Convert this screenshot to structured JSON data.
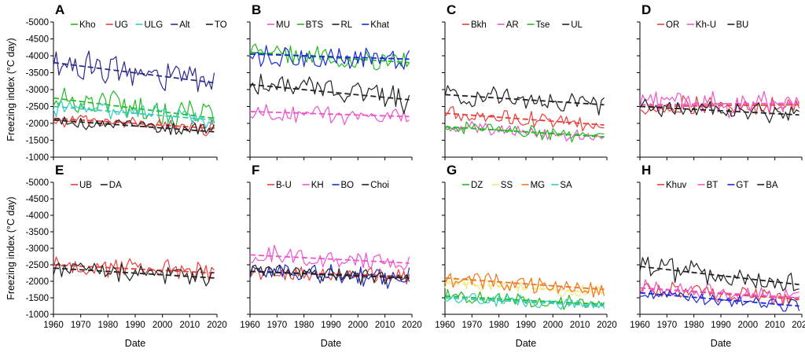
{
  "figure": {
    "ylabel": "Freezing index (°C day)",
    "xlabel": "Date"
  },
  "colors": {
    "red": "#e8403c",
    "green": "#22bb22",
    "cyan": "#33ccbb",
    "black": "#222222",
    "navy": "#2b2a8c",
    "blue": "#1a2ad0",
    "magenta": "#ee55cc",
    "orange": "#ee7722",
    "yellow": "#f5e680"
  },
  "chart_data": [
    {
      "panel": "A",
      "type": "line",
      "x": [
        1960,
        2020
      ],
      "xticks": [
        1960,
        1970,
        1980,
        1990,
        2000,
        2010,
        2020
      ],
      "ylim": [
        -1000,
        -5000
      ],
      "yticks": [
        -5000,
        -4500,
        -4000,
        -3500,
        -3000,
        -2500,
        -2000,
        -1500,
        -1000
      ],
      "ytick_labels": [
        "-5000",
        "-4500",
        "-4000",
        "-3500",
        "-3000",
        "-2500",
        "-2000",
        "-1500",
        "-1000"
      ],
      "xlabel": "",
      "show_ylabel": true,
      "show_xticklabels": false,
      "series": [
        {
          "name": "Kho",
          "color": "green",
          "mean_start": -2750,
          "mean_end": -2150,
          "amplitude": 380
        },
        {
          "name": "UG",
          "color": "red",
          "mean_start": -2150,
          "mean_end": -1850,
          "amplitude": 200
        },
        {
          "name": "ULG",
          "color": "cyan",
          "mean_start": -2500,
          "mean_end": -2100,
          "amplitude": 230
        },
        {
          "name": "Alt",
          "color": "navy",
          "mean_start": -3800,
          "mean_end": -3200,
          "amplitude": 380
        },
        {
          "name": "TO",
          "color": "black",
          "mean_start": -2100,
          "mean_end": -1750,
          "amplitude": 180
        }
      ]
    },
    {
      "panel": "B",
      "type": "line",
      "x": [
        1960,
        2020
      ],
      "xticks": [
        1960,
        1970,
        1980,
        1990,
        2000,
        2010,
        2020
      ],
      "ylim": [
        -1000,
        -5000
      ],
      "yticks": [
        -5000,
        -4500,
        -4000,
        -3500,
        -3000,
        -2500,
        -2000,
        -1500,
        -1000
      ],
      "ytick_labels": [
        "",
        "",
        "",
        "",
        "",
        "",
        "",
        "",
        ""
      ],
      "xlabel": "",
      "show_ylabel": false,
      "show_xticklabels": false,
      "series": [
        {
          "name": "MU",
          "color": "magenta",
          "mean_start": -2350,
          "mean_end": -2200,
          "amplitude": 260
        },
        {
          "name": "BTS",
          "color": "green",
          "mean_start": -4100,
          "mean_end": -3800,
          "amplitude": 260
        },
        {
          "name": "RL",
          "color": "black",
          "mean_start": -3150,
          "mean_end": -2700,
          "amplitude": 330
        },
        {
          "name": "Khat",
          "color": "blue",
          "mean_start": -4050,
          "mean_end": -3900,
          "amplitude": 330
        }
      ]
    },
    {
      "panel": "C",
      "type": "line",
      "x": [
        1960,
        2020
      ],
      "xticks": [
        1960,
        1970,
        1980,
        1990,
        2000,
        2010,
        2020
      ],
      "ylim": [
        -1000,
        -5000
      ],
      "yticks": [
        -5000,
        -4500,
        -4000,
        -3500,
        -3000,
        -2500,
        -2000,
        -1500,
        -1000
      ],
      "ytick_labels": [
        "",
        "",
        "",
        "",
        "",
        "",
        "",
        "",
        ""
      ],
      "xlabel": "",
      "show_ylabel": false,
      "show_xticklabels": false,
      "series": [
        {
          "name": "Bkh",
          "color": "red",
          "mean_start": -2300,
          "mean_end": -1950,
          "amplitude": 220
        },
        {
          "name": "AR",
          "color": "magenta",
          "mean_start": -1900,
          "mean_end": -1600,
          "amplitude": 180
        },
        {
          "name": "Tse",
          "color": "green",
          "mean_start": -1900,
          "mean_end": -1600,
          "amplitude": 200
        },
        {
          "name": "UL",
          "color": "black",
          "mean_start": -2850,
          "mean_end": -2550,
          "amplitude": 260
        }
      ]
    },
    {
      "panel": "D",
      "type": "line",
      "x": [
        1960,
        2020
      ],
      "xticks": [
        1960,
        1970,
        1980,
        1990,
        2000,
        2010,
        2020
      ],
      "ylim": [
        -1000,
        -5000
      ],
      "yticks": [
        -5000,
        -4500,
        -4000,
        -3500,
        -3000,
        -2500,
        -2000,
        -1500,
        -1000
      ],
      "ytick_labels": [
        "",
        "",
        "",
        "",
        "",
        "",
        "",
        "",
        ""
      ],
      "xlabel": "",
      "show_ylabel": false,
      "show_xticklabels": false,
      "series": [
        {
          "name": "OR",
          "color": "red",
          "mean_start": -2500,
          "mean_end": -2550,
          "amplitude": 260
        },
        {
          "name": "Kh-U",
          "color": "magenta",
          "mean_start": -2550,
          "mean_end": -2600,
          "amplitude": 320
        },
        {
          "name": "BU",
          "color": "black",
          "mean_start": -2500,
          "mean_end": -2250,
          "amplitude": 240
        }
      ]
    },
    {
      "panel": "E",
      "type": "line",
      "x": [
        1960,
        2020
      ],
      "xticks": [
        1960,
        1970,
        1980,
        1990,
        2000,
        2010,
        2020
      ],
      "xtick_labels": [
        "1960",
        "1970",
        "1980",
        "1990",
        "2000",
        "2010",
        "2020"
      ],
      "ylim": [
        -1000,
        -5000
      ],
      "yticks": [
        -5000,
        -4500,
        -4000,
        -3500,
        -3000,
        -2500,
        -2000,
        -1500,
        -1000
      ],
      "ytick_labels": [
        "-5000",
        "-4500",
        "-4000",
        "-3500",
        "-3000",
        "-2500",
        "-2000",
        "-1500",
        "-1000"
      ],
      "xlabel": "Date",
      "show_ylabel": true,
      "show_xticklabels": true,
      "series": [
        {
          "name": "UB",
          "color": "red",
          "mean_start": -2500,
          "mean_end": -2250,
          "amplitude": 260
        },
        {
          "name": "DA",
          "color": "black",
          "mean_start": -2400,
          "mean_end": -2100,
          "amplitude": 230
        }
      ]
    },
    {
      "panel": "F",
      "type": "line",
      "x": [
        1960,
        2020
      ],
      "xticks": [
        1960,
        1970,
        1980,
        1990,
        2000,
        2010,
        2020
      ],
      "xtick_labels": [
        "1960",
        "1970",
        "1980",
        "1990",
        "2000",
        "2010",
        "2020"
      ],
      "ylim": [
        -1000,
        -5000
      ],
      "yticks": [
        -5000,
        -4500,
        -4000,
        -3500,
        -3000,
        -2500,
        -2000,
        -1500,
        -1000
      ],
      "ytick_labels": [
        "",
        "",
        "",
        "",
        "",
        "",
        "",
        "",
        ""
      ],
      "xlabel": "Date",
      "show_ylabel": false,
      "show_xticklabels": true,
      "series": [
        {
          "name": "B-U",
          "color": "red",
          "mean_start": -2300,
          "mean_end": -2150,
          "amplitude": 200
        },
        {
          "name": "KH",
          "color": "magenta",
          "mean_start": -2800,
          "mean_end": -2550,
          "amplitude": 260
        },
        {
          "name": "BO",
          "color": "blue",
          "mean_start": -2300,
          "mean_end": -2100,
          "amplitude": 280
        },
        {
          "name": "Choi",
          "color": "black",
          "mean_start": -2300,
          "mean_end": -2100,
          "amplitude": 230
        }
      ]
    },
    {
      "panel": "G",
      "type": "line",
      "x": [
        1960,
        2020
      ],
      "xticks": [
        1960,
        1970,
        1980,
        1990,
        2000,
        2010,
        2020
      ],
      "xtick_labels": [
        "1960",
        "1970",
        "1980",
        "1990",
        "2000",
        "2010",
        "2020"
      ],
      "ylim": [
        -1000,
        -5000
      ],
      "yticks": [
        -5000,
        -4500,
        -4000,
        -3500,
        -3000,
        -2500,
        -2000,
        -1500,
        -1000
      ],
      "ytick_labels": [
        "",
        "",
        "",
        "",
        "",
        "",
        "",
        "",
        ""
      ],
      "xlabel": "Date",
      "show_ylabel": false,
      "show_xticklabels": true,
      "series": [
        {
          "name": "DZ",
          "color": "green",
          "mean_start": -1550,
          "mean_end": -1300,
          "amplitude": 180
        },
        {
          "name": "SS",
          "color": "yellow",
          "mean_start": -1950,
          "mean_end": -1650,
          "amplitude": 200
        },
        {
          "name": "MG",
          "color": "orange",
          "mean_start": -2100,
          "mean_end": -1750,
          "amplitude": 230
        },
        {
          "name": "SA",
          "color": "cyan",
          "mean_start": -1500,
          "mean_end": -1250,
          "amplitude": 170
        }
      ]
    },
    {
      "panel": "H",
      "type": "line",
      "x": [
        1960,
        2020
      ],
      "xticks": [
        1960,
        1970,
        1980,
        1990,
        2000,
        2010,
        2020
      ],
      "xtick_labels": [
        "1960",
        "1970",
        "1980",
        "1990",
        "2000",
        "2010",
        "2020"
      ],
      "ylim": [
        -1000,
        -5000
      ],
      "yticks": [
        -5000,
        -4500,
        -4000,
        -3500,
        -3000,
        -2500,
        -2000,
        -1500,
        -1000
      ],
      "ytick_labels": [
        "",
        "",
        "",
        "",
        "",
        "",
        "",
        "",
        ""
      ],
      "xlabel": "Date",
      "show_ylabel": false,
      "show_xticklabels": true,
      "series": [
        {
          "name": "Khuv",
          "color": "red",
          "mean_start": -1800,
          "mean_end": -1450,
          "amplitude": 230
        },
        {
          "name": "BT",
          "color": "magenta",
          "mean_start": -1800,
          "mean_end": -1500,
          "amplitude": 230
        },
        {
          "name": "GT",
          "color": "blue",
          "mean_start": -1650,
          "mean_end": -1250,
          "amplitude": 180
        },
        {
          "name": "BA",
          "color": "black",
          "mean_start": -2450,
          "mean_end": -1900,
          "amplitude": 300
        }
      ]
    }
  ]
}
